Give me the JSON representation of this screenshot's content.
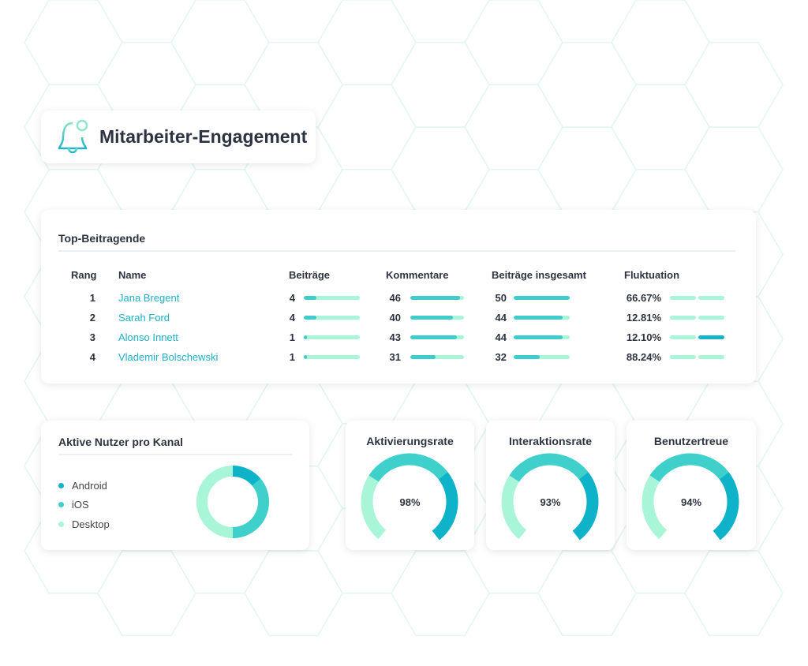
{
  "header": {
    "title": "Mitarbeiter-Engagement",
    "icon": "bell-icon"
  },
  "top": {
    "title": "Top-Beitragende",
    "columns": [
      "Rang",
      "Name",
      "Beiträge",
      "Kommentare",
      "Beiträge insgesamt",
      "Fluktuation"
    ],
    "rows": [
      {
        "rank": "1",
        "name": "Jana Bregent",
        "posts": "4",
        "posts_fill": 0.23,
        "comments": "46",
        "comments_fill": 0.93,
        "total": "50",
        "total_fill": 1.0,
        "churn": "66.67%",
        "churn_high": false
      },
      {
        "rank": "2",
        "name": "Sarah Ford",
        "posts": "4",
        "posts_fill": 0.23,
        "comments": "40",
        "comments_fill": 0.8,
        "total": "44",
        "total_fill": 0.88,
        "churn": "12.81%",
        "churn_high": false
      },
      {
        "rank": "3",
        "name": "Alonso Innett",
        "posts": "1",
        "posts_fill": 0.06,
        "comments": "43",
        "comments_fill": 0.87,
        "total": "44",
        "total_fill": 0.88,
        "churn": "12.10%",
        "churn_high": true
      },
      {
        "rank": "4",
        "name": "Vlademir Bolschewski",
        "posts": "1",
        "posts_fill": 0.06,
        "comments": "31",
        "comments_fill": 0.47,
        "total": "32",
        "total_fill": 0.46,
        "churn": "88.24%",
        "churn_high": false
      }
    ]
  },
  "channels": {
    "title": "Aktive Nutzer pro Kanal",
    "items": [
      {
        "label": "Android",
        "share": 0.14,
        "color": "#0fb3c9"
      },
      {
        "label": "iOS",
        "share": 0.36,
        "color": "#3fd0cc"
      },
      {
        "label": "Desktop",
        "share": 0.5,
        "color": "#a9f5d8"
      }
    ]
  },
  "gauges": [
    {
      "title": "Aktivierungsrate",
      "value": "98%"
    },
    {
      "title": "Interaktionsrate",
      "value": "93%"
    },
    {
      "title": "Benutzertreue",
      "value": "94%"
    }
  ],
  "colors": {
    "light": "#a9f5d8",
    "mid": "#3fd0cc",
    "dark": "#0fb3c9",
    "link": "#1eb1c8"
  }
}
